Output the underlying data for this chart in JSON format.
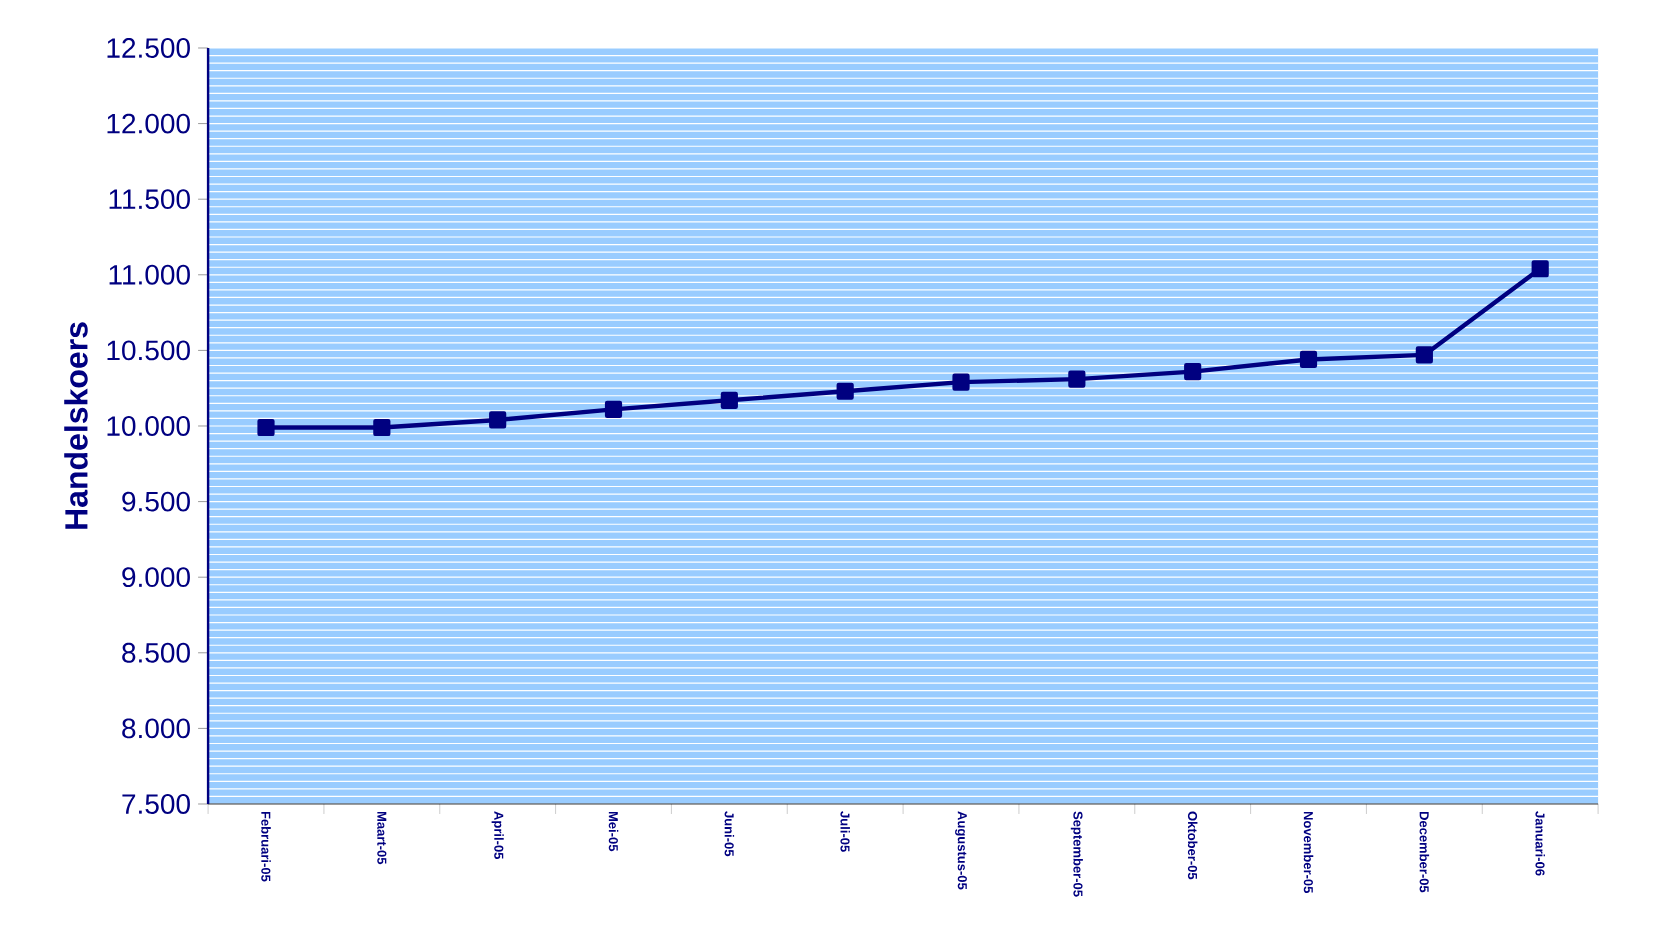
{
  "chart_data": {
    "type": "line",
    "ylabel": "Handelskoers",
    "categories": [
      "Februari-05",
      "Maart-05",
      "April-05",
      "Mei-05",
      "Juni-05",
      "Juli-05",
      "Augustus-05",
      "September-05",
      "Oktober-05",
      "November-05",
      "December-05",
      "Januari-06"
    ],
    "series": [
      {
        "color": "#000080",
        "values": [
          9990,
          9990,
          10040,
          10110,
          10170,
          10230,
          10290,
          10310,
          10360,
          10440,
          10470,
          11040
        ]
      }
    ],
    "ylim": [
      7500,
      12500
    ],
    "yticks": [
      {
        "value": 7500,
        "label": "7.500"
      },
      {
        "value": 8000,
        "label": "8.000"
      },
      {
        "value": 8500,
        "label": "8.500"
      },
      {
        "value": 9000,
        "label": "9.000"
      },
      {
        "value": 9500,
        "label": "9.500"
      },
      {
        "value": 10000,
        "label": "10.000"
      },
      {
        "value": 10500,
        "label": "10.500"
      },
      {
        "value": 11000,
        "label": "11.000"
      },
      {
        "value": 11500,
        "label": "11.500"
      },
      {
        "value": 12000,
        "label": "12.000"
      },
      {
        "value": 12500,
        "label": "12.500"
      }
    ],
    "grid": "y",
    "marker": "square",
    "line_style": "solid"
  }
}
